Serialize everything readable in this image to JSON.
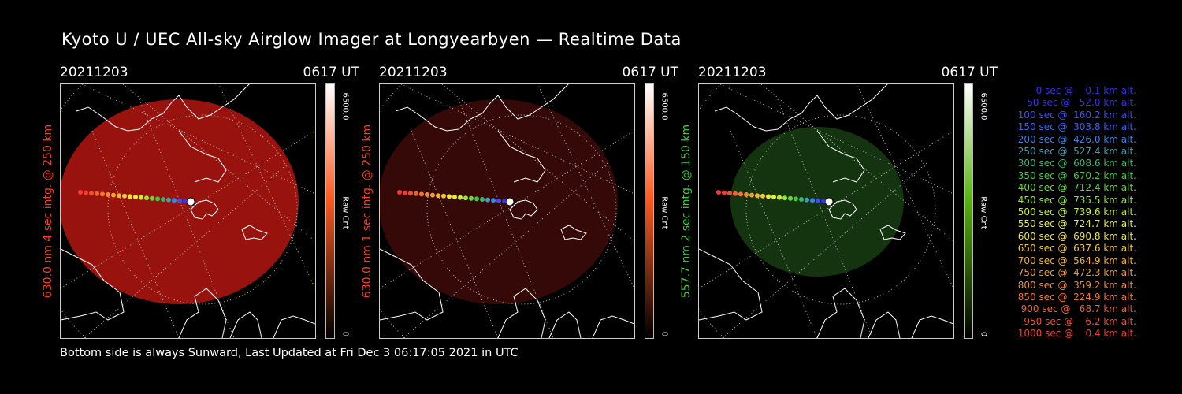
{
  "title": "Kyoto U / UEC All-sky Airglow Imager at Longyearbyen — Realtime Data",
  "footer": "Bottom side is always Sunward, Last Updated at Fri Dec  3 06:17:05 2021 in UTC",
  "panels": [
    {
      "date": "20211203",
      "time": "0617 UT",
      "label": "630.0 nm 4 sec intg. @ 250 km",
      "label_color": "#ff3c1e",
      "cbar_max": "6500.0",
      "cbar_unit": "Raw Cnt",
      "cbar_min": "0",
      "cbar_top": "#ffffff",
      "cbar_mid": "#ff5a1e",
      "cbar_bot": "#000000",
      "glow": "#a81410",
      "glow_opacity": 0.9
    },
    {
      "date": "20211203",
      "time": "0617 UT",
      "label": "630.0 nm 1 sec intg. @ 250 km",
      "label_color": "#ff3c1e",
      "cbar_max": "6500.0",
      "cbar_unit": "Raw Cnt",
      "cbar_min": "0",
      "cbar_top": "#ffffff",
      "cbar_mid": "#ff5a1e",
      "cbar_bot": "#000000",
      "glow": "#3a0a08",
      "glow_opacity": 0.9
    },
    {
      "date": "20211203",
      "time": "0617 UT",
      "label": "557.7 nm 2 sec intg. @ 150 km",
      "label_color": "#3ccd3c",
      "cbar_max": "6500.0",
      "cbar_unit": "Raw Cnt",
      "cbar_min": "0",
      "cbar_top": "#ffffff",
      "cbar_mid": "#5ab414",
      "cbar_bot": "#000000",
      "glow": "#163a12",
      "glow_opacity": 0.9
    }
  ],
  "legend": [
    {
      "text": "   0 sec @    0.1 km alt.",
      "color": "#3232e6"
    },
    {
      "text": "  50 sec @   52.0 km alt.",
      "color": "#3232f0"
    },
    {
      "text": " 100 sec @  160.2 km alt.",
      "color": "#3c50f0"
    },
    {
      "text": " 150 sec @  303.8 km alt.",
      "color": "#3c64f0"
    },
    {
      "text": " 200 sec @  426.0 km alt.",
      "color": "#3c82e6"
    },
    {
      "text": " 250 sec @  527.4 km alt.",
      "color": "#3ca0b4"
    },
    {
      "text": " 300 sec @  608.6 km alt.",
      "color": "#3cb478"
    },
    {
      "text": " 350 sec @  670.2 km alt.",
      "color": "#46c846"
    },
    {
      "text": " 400 sec @  712.4 km alt.",
      "color": "#64dc32"
    },
    {
      "text": " 450 sec @  735.5 km alt.",
      "color": "#96e632"
    },
    {
      "text": " 500 sec @  739.6 km alt.",
      "color": "#c8f032"
    },
    {
      "text": " 550 sec @  724.7 km alt.",
      "color": "#e6f03c"
    },
    {
      "text": " 600 sec @  690.8 km alt.",
      "color": "#f0e632"
    },
    {
      "text": " 650 sec @  637.6 km alt.",
      "color": "#f0c832"
    },
    {
      "text": " 700 sec @  564.9 km alt.",
      "color": "#f0b432"
    },
    {
      "text": " 750 sec @  472.3 km alt.",
      "color": "#f0a032"
    },
    {
      "text": " 800 sec @  359.2 km alt.",
      "color": "#f08c32"
    },
    {
      "text": " 850 sec @  224.9 km alt.",
      "color": "#f07832"
    },
    {
      "text": " 900 sec @   68.7 km alt.",
      "color": "#f06432"
    },
    {
      "text": " 950 sec @    6.2 km alt.",
      "color": "#f05032"
    },
    {
      "text": "1000 sec @    0.4 km alt.",
      "color": "#f03c32"
    }
  ]
}
